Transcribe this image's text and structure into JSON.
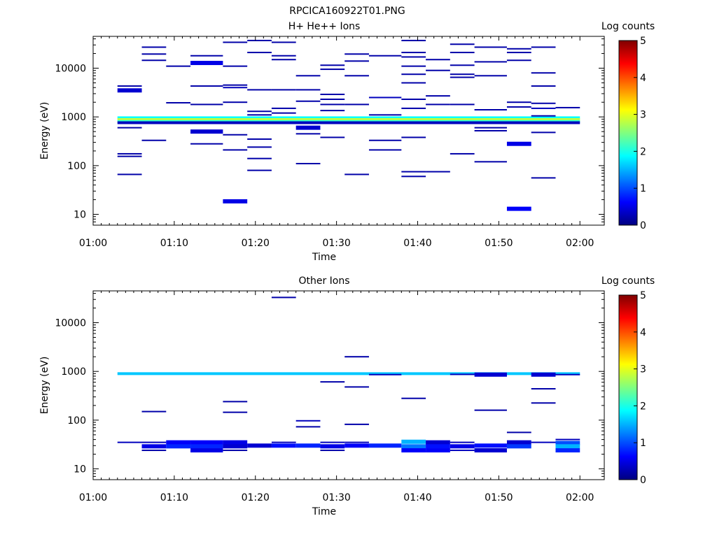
{
  "figure_title": "RPCICA160922T01.PNG",
  "colormap": [
    "#000080",
    "#0000ff",
    "#00ffff",
    "#ffff00",
    "#ff0000",
    "#800000"
  ],
  "chart_data": [
    {
      "type": "heatmap",
      "title": "H+ He++ Ions",
      "xlabel": "Time",
      "ylabel": "Energy (eV)",
      "x_ticks": [
        "01:00",
        "01:10",
        "01:20",
        "01:30",
        "01:40",
        "01:50",
        "02:00"
      ],
      "xlim_minutes": [
        0,
        63
      ],
      "y_ticks": [
        "10",
        "100",
        "1000",
        "10000"
      ],
      "y_scale": "log",
      "ylim": [
        6,
        45000
      ],
      "colorbar": {
        "label": "Log counts",
        "min": 0,
        "max": 5,
        "ticks": [
          "0",
          "1",
          "2",
          "3",
          "4",
          "5"
        ]
      },
      "cells": [
        [
          3,
          6,
          66,
          0.2
        ],
        [
          3,
          6,
          155,
          0.2
        ],
        [
          3,
          6,
          175,
          0.2
        ],
        [
          3,
          6,
          600,
          0.2
        ],
        [
          3,
          6,
          3500,
          0.4
        ],
        [
          3,
          6,
          4300,
          0.2
        ],
        [
          6,
          9,
          330,
          0.2
        ],
        [
          6,
          9,
          14500,
          0.2
        ],
        [
          6,
          9,
          19500,
          0.2
        ],
        [
          6,
          9,
          27000,
          0.2
        ],
        [
          9,
          12,
          11000,
          0.2
        ],
        [
          9,
          12,
          1950,
          0.2
        ],
        [
          12,
          16,
          280,
          0.2
        ],
        [
          12,
          16,
          500,
          0.4
        ],
        [
          12,
          16,
          1800,
          0.2
        ],
        [
          12,
          16,
          4300,
          0.2
        ],
        [
          12,
          16,
          12800,
          0.5
        ],
        [
          12,
          16,
          18000,
          0.2
        ],
        [
          16,
          19,
          18.5,
          0.5
        ],
        [
          16,
          19,
          210,
          0.2
        ],
        [
          16,
          19,
          430,
          0.2
        ],
        [
          16,
          19,
          2000,
          0.2
        ],
        [
          16,
          19,
          4000,
          0.3
        ],
        [
          16,
          19,
          4500,
          0.2
        ],
        [
          16,
          19,
          11000,
          0.2
        ],
        [
          16,
          19,
          34000,
          0.2
        ],
        [
          19,
          22,
          80,
          0.2
        ],
        [
          19,
          22,
          140,
          0.2
        ],
        [
          19,
          22,
          240,
          0.2
        ],
        [
          19,
          22,
          350,
          0.2
        ],
        [
          19,
          22,
          1100,
          0.2
        ],
        [
          19,
          22,
          1300,
          0.2
        ],
        [
          19,
          22,
          3600,
          0.2
        ],
        [
          19,
          22,
          21000,
          0.2
        ],
        [
          19,
          22,
          37000,
          0.2
        ],
        [
          22,
          25,
          1200,
          0.2
        ],
        [
          22,
          25,
          1500,
          0.2
        ],
        [
          22,
          25,
          3600,
          0.2
        ],
        [
          22,
          25,
          15000,
          0.2
        ],
        [
          22,
          25,
          18000,
          0.2
        ],
        [
          22,
          25,
          34000,
          0.2
        ],
        [
          25,
          28,
          110,
          0.2
        ],
        [
          25,
          28,
          450,
          0.2
        ],
        [
          25,
          28,
          600,
          0.4
        ],
        [
          25,
          28,
          2100,
          0.2
        ],
        [
          25,
          28,
          3600,
          0.2
        ],
        [
          25,
          28,
          7000,
          0.2
        ],
        [
          28,
          31,
          380,
          0.2
        ],
        [
          28,
          31,
          1350,
          0.2
        ],
        [
          28,
          31,
          1800,
          0.2
        ],
        [
          28,
          31,
          2300,
          0.2
        ],
        [
          28,
          31,
          2900,
          0.2
        ],
        [
          28,
          31,
          9500,
          0.2
        ],
        [
          28,
          31,
          11500,
          0.2
        ],
        [
          31,
          34,
          66,
          0.2
        ],
        [
          31,
          34,
          1800,
          0.2
        ],
        [
          31,
          34,
          7000,
          0.2
        ],
        [
          31,
          34,
          14000,
          0.2
        ],
        [
          31,
          34,
          19500,
          0.2
        ],
        [
          34,
          38,
          210,
          0.2
        ],
        [
          34,
          38,
          330,
          0.2
        ],
        [
          34,
          38,
          1100,
          0.2
        ],
        [
          34,
          38,
          2500,
          0.3
        ],
        [
          34,
          38,
          18000,
          0.2
        ],
        [
          38,
          41,
          60,
          0.2
        ],
        [
          38,
          41,
          75,
          0.2
        ],
        [
          38,
          41,
          380,
          0.2
        ],
        [
          38,
          41,
          1500,
          0.2
        ],
        [
          38,
          41,
          2300,
          0.2
        ],
        [
          38,
          41,
          5000,
          0.2
        ],
        [
          38,
          41,
          7500,
          0.2
        ],
        [
          38,
          41,
          11000,
          0.2
        ],
        [
          38,
          41,
          17000,
          0.2
        ],
        [
          38,
          41,
          21000,
          0.2
        ],
        [
          38,
          41,
          37000,
          0.2
        ],
        [
          41,
          44,
          75,
          0.2
        ],
        [
          41,
          44,
          1800,
          0.2
        ],
        [
          41,
          44,
          2700,
          0.2
        ],
        [
          41,
          44,
          9000,
          0.2
        ],
        [
          41,
          44,
          15000,
          0.2
        ],
        [
          44,
          47,
          175,
          0.2
        ],
        [
          44,
          47,
          750,
          0.3
        ],
        [
          44,
          47,
          1800,
          0.2
        ],
        [
          44,
          47,
          6500,
          0.2
        ],
        [
          44,
          47,
          7500,
          0.2
        ],
        [
          44,
          47,
          11500,
          0.2
        ],
        [
          44,
          47,
          21000,
          0.2
        ],
        [
          44,
          47,
          31000,
          0.2
        ],
        [
          47,
          51,
          120,
          0.2
        ],
        [
          47,
          51,
          520,
          0.2
        ],
        [
          47,
          51,
          600,
          0.2
        ],
        [
          47,
          51,
          1400,
          0.2
        ],
        [
          47,
          51,
          7000,
          0.2
        ],
        [
          47,
          51,
          13500,
          0.2
        ],
        [
          47,
          51,
          27000,
          0.2
        ],
        [
          51,
          54,
          13,
          0.6
        ],
        [
          51,
          54,
          280,
          0.5
        ],
        [
          51,
          54,
          1600,
          0.2
        ],
        [
          51,
          54,
          2000,
          0.2
        ],
        [
          51,
          54,
          14500,
          0.2
        ],
        [
          51,
          54,
          21000,
          0.2
        ],
        [
          51,
          54,
          25000,
          0.2
        ],
        [
          54,
          57,
          56,
          0.2
        ],
        [
          54,
          57,
          480,
          0.2
        ],
        [
          54,
          57,
          1050,
          0.2
        ],
        [
          54,
          57,
          1500,
          0.3
        ],
        [
          54,
          57,
          1900,
          0.2
        ],
        [
          54,
          57,
          4300,
          0.2
        ],
        [
          54,
          57,
          8000,
          0.2
        ],
        [
          54,
          57,
          27000,
          0.2
        ],
        [
          57,
          60,
          1550,
          0.2
        ]
      ],
      "bands": [
        [
          3,
          60,
          960,
          1.9
        ],
        [
          3,
          60,
          880,
          2.9
        ],
        [
          3,
          60,
          810,
          2.1
        ],
        [
          3,
          60,
          760,
          0.3
        ]
      ]
    },
    {
      "type": "heatmap",
      "title": "Other Ions",
      "xlabel": "Time",
      "ylabel": "Energy (eV)",
      "x_ticks": [
        "01:00",
        "01:10",
        "01:20",
        "01:30",
        "01:40",
        "01:50",
        "02:00"
      ],
      "xlim_minutes": [
        0,
        63
      ],
      "y_ticks": [
        "10",
        "100",
        "1000",
        "10000"
      ],
      "y_scale": "log",
      "ylim": [
        6,
        45000
      ],
      "colorbar": {
        "label": "Log counts",
        "min": 0,
        "max": 5,
        "ticks": [
          "0",
          "1",
          "2",
          "3",
          "4",
          "5"
        ]
      },
      "cells": [
        [
          22,
          25,
          33000,
          0.2
        ],
        [
          31,
          34,
          2000,
          0.2
        ],
        [
          31,
          34,
          480,
          0.2
        ],
        [
          31,
          34,
          82,
          0.2
        ],
        [
          28,
          31,
          610,
          0.2
        ],
        [
          34,
          38,
          860,
          0.3
        ],
        [
          38,
          41,
          280,
          0.2
        ],
        [
          6,
          9,
          150,
          0.2
        ],
        [
          16,
          19,
          145,
          0.2
        ],
        [
          16,
          19,
          240,
          0.2
        ],
        [
          25,
          28,
          73,
          0.2
        ],
        [
          25,
          28,
          97,
          0.3
        ],
        [
          47,
          51,
          160,
          0.2
        ],
        [
          51,
          54,
          56,
          0.2
        ],
        [
          54,
          57,
          225,
          0.2
        ],
        [
          54,
          57,
          440,
          0.2
        ],
        [
          54,
          57,
          860,
          0.4
        ],
        [
          44,
          47,
          870,
          0.3
        ],
        [
          47,
          51,
          860,
          0.4
        ],
        [
          57,
          60,
          860,
          0.3
        ],
        [
          3,
          6,
          35,
          0.3
        ],
        [
          6,
          9,
          35,
          0.3
        ],
        [
          6,
          9,
          29,
          0.5
        ],
        [
          6,
          9,
          24,
          0.2
        ],
        [
          9,
          12,
          35,
          0.6
        ],
        [
          9,
          12,
          29,
          0.8
        ],
        [
          12,
          16,
          35,
          0.6
        ],
        [
          12,
          16,
          29,
          0.8
        ],
        [
          12,
          16,
          24,
          0.5
        ],
        [
          16,
          19,
          35,
          0.5
        ],
        [
          16,
          19,
          29,
          0.4
        ],
        [
          16,
          19,
          24,
          0.2
        ],
        [
          19,
          22,
          30,
          0.4
        ],
        [
          22,
          25,
          35,
          0.3
        ],
        [
          22,
          25,
          30,
          0.7
        ],
        [
          25,
          28,
          30,
          0.8
        ],
        [
          28,
          31,
          35,
          0.3
        ],
        [
          28,
          31,
          29,
          0.5
        ],
        [
          28,
          31,
          24,
          0.2
        ],
        [
          31,
          34,
          35,
          0.3
        ],
        [
          31,
          34,
          30,
          0.6
        ],
        [
          34,
          38,
          30,
          0.8
        ],
        [
          38,
          41,
          36,
          1.5
        ],
        [
          38,
          41,
          29,
          1.2
        ],
        [
          38,
          41,
          24,
          0.6
        ],
        [
          41,
          44,
          35,
          0.4
        ],
        [
          41,
          44,
          29,
          0.7
        ],
        [
          41,
          44,
          24,
          0.6
        ],
        [
          44,
          47,
          35,
          0.3
        ],
        [
          44,
          47,
          29,
          0.5
        ],
        [
          44,
          47,
          24,
          0.3
        ],
        [
          47,
          51,
          30,
          0.7
        ],
        [
          47,
          51,
          24,
          0.4
        ],
        [
          51,
          54,
          35,
          0.4
        ],
        [
          51,
          54,
          29,
          0.9
        ],
        [
          54,
          57,
          35,
          0.3
        ],
        [
          57,
          60,
          40,
          0.3
        ],
        [
          57,
          60,
          34,
          1.0
        ],
        [
          57,
          60,
          29,
          1.5
        ],
        [
          57,
          60,
          24,
          0.8
        ]
      ],
      "bands": [
        [
          3,
          60,
          900,
          1.6
        ]
      ]
    }
  ]
}
